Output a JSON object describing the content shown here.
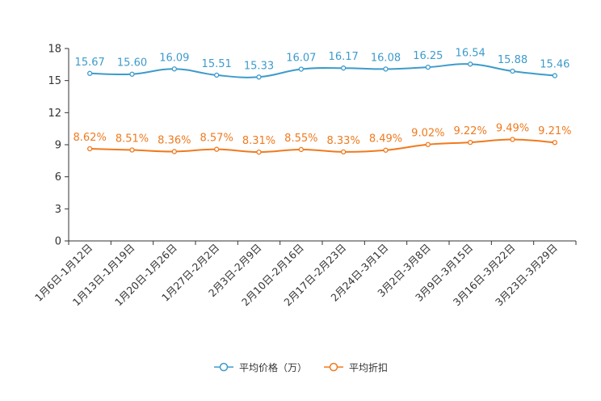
{
  "chart_data": {
    "type": "line",
    "title": "",
    "xlabel": "",
    "ylabel": "",
    "ylim": [
      0,
      18
    ],
    "yticks": [
      "0",
      "3",
      "6",
      "9",
      "12",
      "15",
      "18"
    ],
    "categories": [
      "1月6日-1月12日",
      "1月13日-1月19日",
      "1月20日-1月26日",
      "1月27日-2月2日",
      "2月3日-2月9日",
      "2月10日-2月16日",
      "2月17日-2月23日",
      "2月24日-3月1日",
      "3月2日-3月8日",
      "3月9日-3月15日",
      "3月16日-3月22日",
      "3月23日-3月29日"
    ],
    "series": [
      {
        "name": "平均价格（万）",
        "color": "#3d9bcb",
        "values": [
          15.67,
          15.6,
          16.09,
          15.51,
          15.33,
          16.07,
          16.17,
          16.08,
          16.25,
          16.54,
          15.88,
          15.46
        ],
        "labels": [
          "15.67",
          "15.60",
          "16.09",
          "15.51",
          "15.33",
          "16.07",
          "16.17",
          "16.08",
          "16.25",
          "16.54",
          "15.88",
          "15.46"
        ]
      },
      {
        "name": "平均折扣",
        "color": "#f07a1e",
        "values": [
          8.62,
          8.51,
          8.36,
          8.57,
          8.31,
          8.55,
          8.33,
          8.49,
          9.02,
          9.22,
          9.49,
          9.21
        ],
        "labels": [
          "8.62%",
          "8.51%",
          "8.36%",
          "8.57%",
          "8.31%",
          "8.55%",
          "8.33%",
          "8.49%",
          "9.02%",
          "9.22%",
          "9.49%",
          "9.21%"
        ]
      }
    ],
    "grid": false,
    "legend": "bottom-center"
  }
}
